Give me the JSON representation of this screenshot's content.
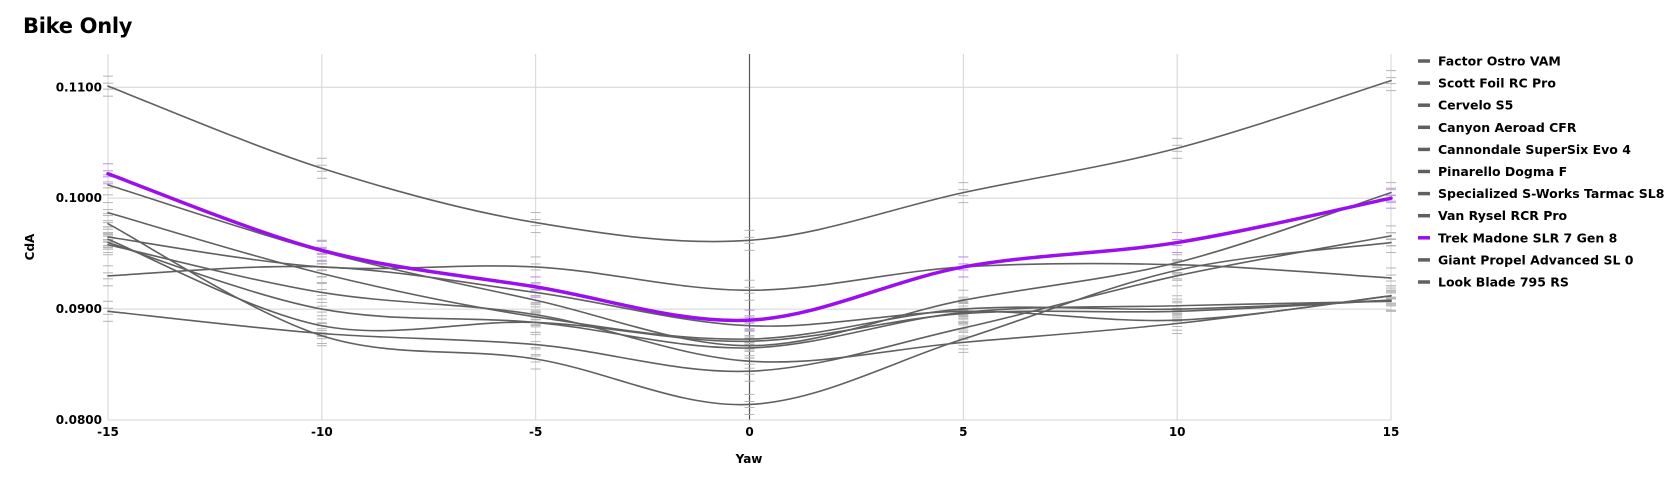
{
  "chart_data": {
    "type": "line",
    "title": "Bike Only",
    "xlabel": "Yaw",
    "ylabel": "CdA",
    "xlim": [
      -15,
      15
    ],
    "ylim": [
      0.08,
      0.113
    ],
    "x_ticks": [
      -15,
      -10,
      -5,
      0,
      5,
      10,
      15
    ],
    "y_ticks": [
      0.08,
      0.09,
      0.1,
      0.11
    ],
    "y_tick_decimals": 4,
    "grid": true,
    "legend_position": "right",
    "x": [
      -15,
      -10,
      -5,
      0,
      5,
      10,
      15
    ],
    "series": [
      {
        "name": "Factor Ostro VAM",
        "values": [
          0.0965,
          0.0938,
          0.0938,
          0.0917,
          0.0938,
          0.094,
          0.0928
        ]
      },
      {
        "name": "Scott Foil RC Pro",
        "values": [
          0.093,
          0.0938,
          0.0915,
          0.0885,
          0.0898,
          0.089,
          0.0912
        ]
      },
      {
        "name": "Cervelo S5",
        "values": [
          0.0977,
          0.0876,
          0.0855,
          0.0814,
          0.0873,
          0.0935,
          0.096
        ]
      },
      {
        "name": "Canyon Aeroad CFR",
        "values": [
          0.0987,
          0.0932,
          0.0893,
          0.0873,
          0.09,
          0.09,
          0.0908
        ]
      },
      {
        "name": "Cannondale SuperSix Evo 4",
        "values": [
          0.0963,
          0.0885,
          0.0888,
          0.0871,
          0.0896,
          0.0898,
          0.0908
        ]
      },
      {
        "name": "Pinarello Dogma F",
        "values": [
          0.096,
          0.09,
          0.0888,
          0.0865,
          0.0897,
          0.0903,
          0.0907
        ]
      },
      {
        "name": "Specialized S-Works Tarmac SL8",
        "values": [
          0.0958,
          0.0915,
          0.0895,
          0.0853,
          0.087,
          0.0887,
          0.0912
        ]
      },
      {
        "name": "Van Rysel RCR Pro",
        "values": [
          0.1101,
          0.1027,
          0.0978,
          0.0962,
          0.1005,
          0.1045,
          0.1106
        ]
      },
      {
        "name": "Trek Madone SLR 7 Gen 8",
        "values": [
          0.1022,
          0.0953,
          0.092,
          0.089,
          0.0938,
          0.096,
          0.1
        ]
      },
      {
        "name": "Giant Propel Advanced SL 0",
        "values": [
          0.1012,
          0.0952,
          0.0908,
          0.0867,
          0.0908,
          0.0942,
          0.1005
        ]
      },
      {
        "name": "Look Blade 795 RS",
        "values": [
          0.0898,
          0.0878,
          0.0868,
          0.0844,
          0.0883,
          0.093,
          0.0966
        ]
      }
    ],
    "highlight_series": "Trek Madone SLR 7 Gen 8",
    "colors": {
      "default_line": "#606060",
      "highlight_line": "#9b0fef",
      "grid": "#d4d4d4",
      "zero_line": "#555555"
    }
  }
}
